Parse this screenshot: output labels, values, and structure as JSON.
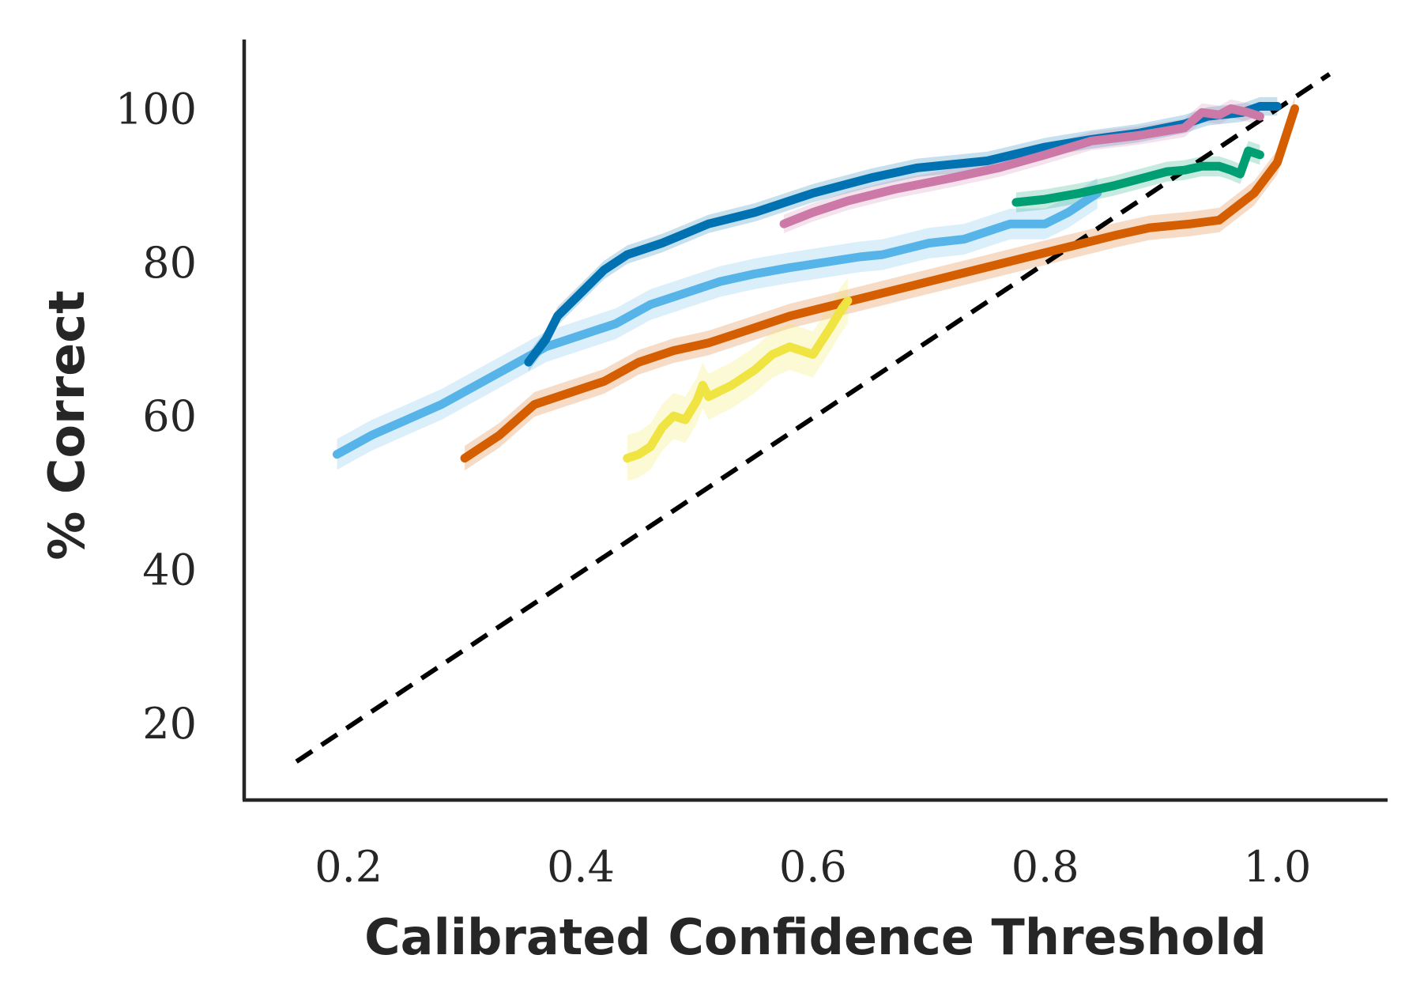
{
  "chart_data": {
    "type": "line",
    "title": "",
    "xlabel": "Calibrated Confidence Threshold",
    "ylabel": "% Correct",
    "xlim": [
      0.11,
      1.095
    ],
    "ylim": [
      10,
      109
    ],
    "xticks": [
      {
        "value": 0.2,
        "label": "0.2"
      },
      {
        "value": 0.4,
        "label": "0.4"
      },
      {
        "value": 0.6,
        "label": "0.6"
      },
      {
        "value": 0.8,
        "label": "0.8"
      },
      {
        "value": 1.0,
        "label": "1.0"
      }
    ],
    "yticks": [
      {
        "value": 20,
        "label": "20"
      },
      {
        "value": 40,
        "label": "40"
      },
      {
        "value": 60,
        "label": "60"
      },
      {
        "value": 80,
        "label": "80"
      },
      {
        "value": 100,
        "label": "100"
      }
    ],
    "grid": false,
    "legend": "none",
    "reference_line": {
      "style": "dashed",
      "color": "#000000",
      "points": [
        [
          0.155,
          15
        ],
        [
          1.045,
          104.5
        ]
      ]
    },
    "series": [
      {
        "color": "#56b4e9",
        "band": 2.0,
        "points": [
          [
            0.19,
            55
          ],
          [
            0.22,
            57.5
          ],
          [
            0.25,
            59.5
          ],
          [
            0.28,
            61.5
          ],
          [
            0.31,
            64
          ],
          [
            0.34,
            66.5
          ],
          [
            0.37,
            69
          ],
          [
            0.4,
            70.5
          ],
          [
            0.43,
            72
          ],
          [
            0.46,
            74.5
          ],
          [
            0.49,
            76
          ],
          [
            0.52,
            77.5
          ],
          [
            0.55,
            78.5
          ],
          [
            0.58,
            79.3
          ],
          [
            0.61,
            80
          ],
          [
            0.64,
            80.7
          ],
          [
            0.66,
            81
          ],
          [
            0.7,
            82.5
          ],
          [
            0.73,
            83
          ],
          [
            0.77,
            85
          ],
          [
            0.8,
            85
          ],
          [
            0.82,
            86.5
          ],
          [
            0.845,
            89
          ]
        ]
      },
      {
        "color": "#0072b2",
        "band": 1.2,
        "points": [
          [
            0.355,
            67
          ],
          [
            0.37,
            70
          ],
          [
            0.38,
            73
          ],
          [
            0.4,
            76
          ],
          [
            0.42,
            79
          ],
          [
            0.44,
            81
          ],
          [
            0.47,
            82.5
          ],
          [
            0.51,
            85
          ],
          [
            0.55,
            86.5
          ],
          [
            0.6,
            89
          ],
          [
            0.65,
            91
          ],
          [
            0.69,
            92.3
          ],
          [
            0.75,
            93.2
          ],
          [
            0.8,
            95
          ],
          [
            0.84,
            96
          ],
          [
            0.88,
            96.8
          ],
          [
            0.92,
            98
          ],
          [
            0.94,
            99
          ],
          [
            0.97,
            99.5
          ],
          [
            0.985,
            100.3
          ],
          [
            1.0,
            100.3
          ]
        ]
      },
      {
        "color": "#cc79a7",
        "band": 1.2,
        "points": [
          [
            0.575,
            85
          ],
          [
            0.6,
            86.5
          ],
          [
            0.63,
            88
          ],
          [
            0.67,
            89.5
          ],
          [
            0.72,
            91
          ],
          [
            0.76,
            92.3
          ],
          [
            0.8,
            94
          ],
          [
            0.84,
            95.8
          ],
          [
            0.88,
            96.5
          ],
          [
            0.92,
            97.5
          ],
          [
            0.935,
            99.5
          ],
          [
            0.95,
            99.2
          ],
          [
            0.96,
            100
          ],
          [
            0.975,
            99.5
          ],
          [
            0.985,
            99
          ]
        ]
      },
      {
        "color": "#009e73",
        "band": 1.3,
        "points": [
          [
            0.775,
            87.8
          ],
          [
            0.8,
            88.2
          ],
          [
            0.83,
            89
          ],
          [
            0.86,
            90
          ],
          [
            0.885,
            91
          ],
          [
            0.905,
            91.8
          ],
          [
            0.92,
            92
          ],
          [
            0.935,
            92.5
          ],
          [
            0.95,
            92.5
          ],
          [
            0.96,
            92
          ],
          [
            0.968,
            91.5
          ],
          [
            0.975,
            94.5
          ],
          [
            0.985,
            94
          ]
        ]
      },
      {
        "color": "#d55e00",
        "band": 1.6,
        "points": [
          [
            0.3,
            54.5
          ],
          [
            0.33,
            57.5
          ],
          [
            0.36,
            61.5
          ],
          [
            0.39,
            63
          ],
          [
            0.42,
            64.5
          ],
          [
            0.45,
            67
          ],
          [
            0.48,
            68.5
          ],
          [
            0.51,
            69.5
          ],
          [
            0.54,
            71
          ],
          [
            0.58,
            73
          ],
          [
            0.62,
            74.5
          ],
          [
            0.66,
            76
          ],
          [
            0.7,
            77.5
          ],
          [
            0.74,
            79
          ],
          [
            0.78,
            80.5
          ],
          [
            0.82,
            82
          ],
          [
            0.86,
            83.5
          ],
          [
            0.89,
            84.5
          ],
          [
            0.925,
            85
          ],
          [
            0.95,
            85.5
          ],
          [
            0.98,
            89
          ],
          [
            1.0,
            93
          ],
          [
            1.015,
            100
          ]
        ]
      },
      {
        "color": "#f0e442",
        "band": 3.0,
        "points": [
          [
            0.44,
            54.5
          ],
          [
            0.45,
            55
          ],
          [
            0.46,
            56
          ],
          [
            0.47,
            58.5
          ],
          [
            0.48,
            60
          ],
          [
            0.49,
            59.5
          ],
          [
            0.5,
            62
          ],
          [
            0.505,
            64
          ],
          [
            0.51,
            62.5
          ],
          [
            0.53,
            64
          ],
          [
            0.55,
            66
          ],
          [
            0.565,
            68
          ],
          [
            0.58,
            69
          ],
          [
            0.6,
            68
          ],
          [
            0.615,
            71.5
          ],
          [
            0.625,
            74
          ],
          [
            0.63,
            75
          ]
        ]
      }
    ]
  }
}
